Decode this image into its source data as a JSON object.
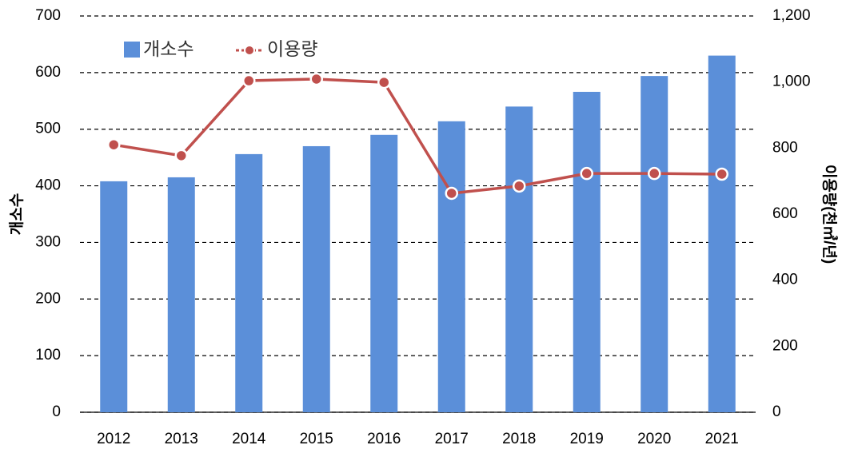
{
  "chart_data": {
    "type": "bar+line",
    "categories": [
      "2012",
      "2013",
      "2014",
      "2015",
      "2016",
      "2017",
      "2018",
      "2019",
      "2020",
      "2021"
    ],
    "series": [
      {
        "name": "개소수",
        "type": "bar",
        "axis": "y",
        "color": "#5b8fd9",
        "values": [
          408,
          415,
          456,
          470,
          490,
          514,
          540,
          566,
          594,
          630
        ]
      },
      {
        "name": "이용량",
        "type": "line",
        "axis": "y2",
        "color": "#c0504d",
        "values": [
          810,
          777,
          1004,
          1009,
          999,
          663,
          685,
          723,
          723,
          721
        ]
      }
    ],
    "ylabel": "개소수",
    "y2label": "이용량(천㎥/년)",
    "ylim": [
      0,
      700
    ],
    "yticks": [
      0,
      100,
      200,
      300,
      400,
      500,
      600,
      700
    ],
    "y2lim": [
      0,
      1200
    ],
    "y2ticks": [
      0,
      200,
      400,
      600,
      800,
      {
        "value": 1000,
        "label": "1,000"
      },
      {
        "value": 1200,
        "label": "1,200"
      }
    ],
    "grid": true,
    "legend": "top-left"
  }
}
